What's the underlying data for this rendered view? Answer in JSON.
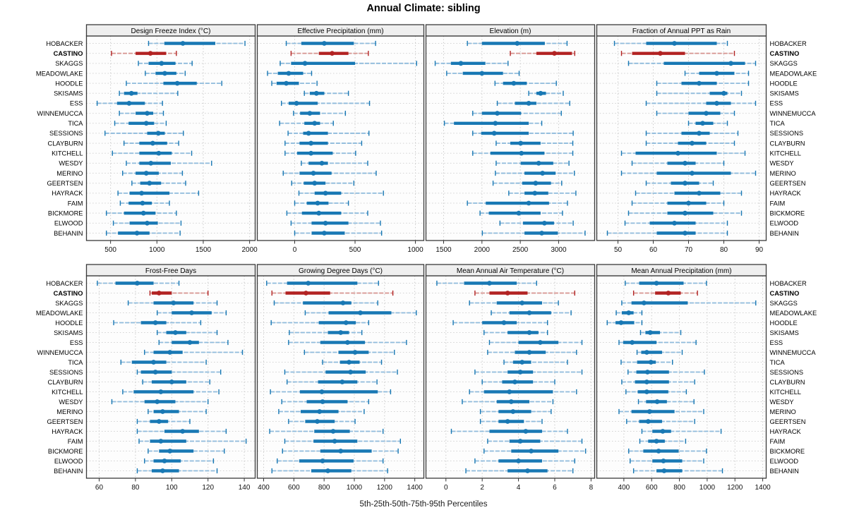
{
  "title": "Annual Climate: sibling",
  "footer_label": "5th-25th-50th-75th-95th Percentiles",
  "percentiles": [
    5,
    25,
    50,
    75,
    95
  ],
  "stations": [
    "HOBACKER",
    "CASTINO",
    "SKAGGS",
    "MEADOWLAKE",
    "HOODLE",
    "SKISAMS",
    "ESS",
    "WINNEMUCCA",
    "TICA",
    "SESSIONS",
    "CLAYBURN",
    "KITCHELL",
    "WESDY",
    "MERINO",
    "GEERTSEN",
    "HAYRACK",
    "FAIM",
    "BICKMORE",
    "ELWOOD",
    "BEHANIN"
  ],
  "highlight_station": "CASTINO",
  "colors": {
    "series": "#1878B4",
    "series_whisker": "#8FBBDC",
    "highlight": "#B22222",
    "highlight_whisker": "#D6938E",
    "strip_bg": "#EFEFEF",
    "border": "#3A3A3A",
    "grid": "#CBCBCB",
    "text": "#111111"
  },
  "chart_data": [
    {
      "type": "scatter",
      "mark": "percentile-interval",
      "title": "Design Freeze Index (°C)",
      "row": 0,
      "col": 0,
      "xlim": [
        240,
        2060
      ],
      "ticks": [
        500,
        1000,
        1500,
        2000
      ],
      "values": [
        [
          910,
          1080,
          1280,
          1630,
          1950
        ],
        [
          510,
          770,
          930,
          1100,
          1210
        ],
        [
          800,
          910,
          1050,
          1200,
          1380
        ],
        [
          875,
          985,
          1085,
          1210,
          1305
        ],
        [
          670,
          1070,
          1220,
          1430,
          1700
        ],
        [
          595,
          645,
          725,
          790,
          1225
        ],
        [
          355,
          570,
          700,
          870,
          1060
        ],
        [
          595,
          770,
          895,
          960,
          1070
        ],
        [
          545,
          695,
          885,
          970,
          1100
        ],
        [
          440,
          895,
          1015,
          1085,
          1285
        ],
        [
          645,
          810,
          955,
          1110,
          1235
        ],
        [
          520,
          810,
          1020,
          1160,
          1375
        ],
        [
          670,
          810,
          935,
          1150,
          1590
        ],
        [
          630,
          770,
          885,
          1020,
          1275
        ],
        [
          730,
          820,
          920,
          1045,
          1310
        ],
        [
          580,
          705,
          835,
          1135,
          1450
        ],
        [
          605,
          695,
          845,
          945,
          1135
        ],
        [
          455,
          645,
          855,
          985,
          1210
        ],
        [
          530,
          705,
          895,
          1010,
          1260
        ],
        [
          455,
          580,
          785,
          920,
          1250
        ]
      ]
    },
    {
      "type": "scatter",
      "mark": "percentile-interval",
      "title": "Effective Precipitation (mm)",
      "row": 0,
      "col": 1,
      "xlim": [
        -310,
        1070
      ],
      "ticks": [
        0,
        500,
        1000
      ],
      "values": [
        [
          -70,
          55,
          245,
          490,
          670
        ],
        [
          -30,
          200,
          310,
          445,
          610
        ],
        [
          -120,
          -30,
          85,
          500,
          1010
        ],
        [
          -225,
          -140,
          -50,
          70,
          140
        ],
        [
          -190,
          -150,
          -70,
          35,
          185
        ],
        [
          80,
          125,
          180,
          245,
          445
        ],
        [
          -110,
          -50,
          15,
          190,
          620
        ],
        [
          -10,
          45,
          125,
          210,
          420
        ],
        [
          -125,
          80,
          165,
          210,
          320
        ],
        [
          -55,
          70,
          115,
          275,
          615
        ],
        [
          -80,
          40,
          135,
          275,
          555
        ],
        [
          -80,
          20,
          135,
          315,
          505
        ],
        [
          55,
          115,
          225,
          275,
          605
        ],
        [
          -95,
          40,
          155,
          305,
          675
        ],
        [
          -25,
          75,
          165,
          255,
          490
        ],
        [
          35,
          165,
          255,
          385,
          735
        ],
        [
          0,
          100,
          190,
          280,
          445
        ],
        [
          -65,
          60,
          200,
          385,
          605
        ],
        [
          -30,
          140,
          255,
          445,
          710
        ],
        [
          0,
          140,
          245,
          415,
          720
        ]
      ]
    },
    {
      "type": "scatter",
      "mark": "percentile-interval",
      "title": "Elevation (m)",
      "row": 0,
      "col": 2,
      "xlim": [
        1270,
        3470
      ],
      "ticks": [
        1500,
        2000,
        2500,
        3000
      ],
      "values": [
        [
          1810,
          2000,
          2460,
          2820,
          3110
        ],
        [
          2370,
          2710,
          2945,
          3175,
          3210
        ],
        [
          1390,
          1595,
          1725,
          2045,
          2340
        ],
        [
          1540,
          1750,
          2000,
          2275,
          2485
        ],
        [
          2170,
          2275,
          2415,
          2585,
          2970
        ],
        [
          2610,
          2710,
          2765,
          2835,
          3060
        ],
        [
          2200,
          2430,
          2610,
          2710,
          3145
        ],
        [
          1880,
          2000,
          2200,
          2510,
          3035
        ],
        [
          1510,
          1635,
          2175,
          2610,
          2780
        ],
        [
          1880,
          1990,
          2160,
          2610,
          3190
        ],
        [
          2185,
          2370,
          2505,
          2765,
          3185
        ],
        [
          1880,
          2110,
          2515,
          2815,
          3185
        ],
        [
          2185,
          2505,
          2740,
          2930,
          3135
        ],
        [
          2175,
          2555,
          2790,
          2960,
          3205
        ],
        [
          2145,
          2525,
          2700,
          2900,
          3040
        ],
        [
          2350,
          2555,
          2690,
          2865,
          3225
        ],
        [
          1810,
          2050,
          2610,
          2875,
          3115
        ],
        [
          1975,
          2090,
          2480,
          2765,
          3050
        ],
        [
          2235,
          2535,
          2815,
          2940,
          3190
        ],
        [
          2005,
          2555,
          2780,
          2990,
          3345
        ]
      ]
    },
    {
      "type": "scatter",
      "mark": "percentile-interval",
      "title": "Fraction of Annual PPT as Rain",
      "row": 0,
      "col": 3,
      "xlim": [
        44,
        92
      ],
      "ticks": [
        50,
        60,
        70,
        80,
        90
      ],
      "values": [
        [
          49,
          58,
          66,
          78,
          81
        ],
        [
          51,
          54,
          62,
          69,
          83
        ],
        [
          53,
          63,
          82,
          86,
          89
        ],
        [
          69,
          73,
          78,
          83,
          87
        ],
        [
          61,
          68,
          73,
          78,
          87
        ],
        [
          61,
          76,
          80,
          81,
          85
        ],
        [
          58,
          75,
          78,
          82,
          89
        ],
        [
          61,
          70,
          75,
          79,
          83
        ],
        [
          70,
          72,
          74,
          77,
          81
        ],
        [
          58,
          68,
          73,
          76,
          84
        ],
        [
          58,
          67,
          71,
          75,
          83
        ],
        [
          51,
          55,
          67,
          78,
          86
        ],
        [
          54,
          64,
          69,
          72,
          80
        ],
        [
          51,
          61,
          71,
          82,
          89
        ],
        [
          58,
          65,
          69,
          73,
          77
        ],
        [
          55,
          66,
          73,
          79,
          85
        ],
        [
          54,
          64,
          70,
          75,
          80
        ],
        [
          53,
          64,
          69,
          77,
          85
        ],
        [
          52,
          59,
          66,
          72,
          81
        ],
        [
          47,
          61,
          69,
          72,
          81
        ]
      ]
    },
    {
      "type": "scatter",
      "mark": "percentile-interval",
      "title": "Frost-Free Days",
      "row": 1,
      "col": 0,
      "xlim": [
        53,
        146
      ],
      "ticks": [
        60,
        80,
        100,
        120,
        140
      ],
      "values": [
        [
          59,
          69,
          81,
          90,
          104
        ],
        [
          88,
          89,
          93,
          100,
          120
        ],
        [
          76,
          90,
          101,
          112,
          125
        ],
        [
          92,
          100,
          111,
          122,
          130
        ],
        [
          68,
          83,
          91,
          97,
          116
        ],
        [
          92,
          97,
          102,
          108,
          125
        ],
        [
          93,
          100,
          110,
          115,
          131
        ],
        [
          85,
          90,
          99,
          106,
          139
        ],
        [
          72,
          78,
          90,
          97,
          119
        ],
        [
          81,
          83,
          91,
          100,
          127
        ],
        [
          84,
          89,
          100,
          108,
          121
        ],
        [
          73,
          79,
          94,
          112,
          126
        ],
        [
          67,
          85,
          92,
          102,
          120
        ],
        [
          87,
          90,
          95,
          104,
          119
        ],
        [
          81,
          88,
          93,
          98,
          110
        ],
        [
          81,
          96,
          106,
          115,
          130
        ],
        [
          82,
          88,
          94,
          108,
          141
        ],
        [
          87,
          93,
          99,
          112,
          129
        ],
        [
          85,
          90,
          96,
          105,
          123
        ],
        [
          81,
          89,
          95,
          104,
          125
        ]
      ]
    },
    {
      "type": "scatter",
      "mark": "percentile-interval",
      "title": "Growing Degree Days (°C)",
      "row": 1,
      "col": 1,
      "xlim": [
        358,
        1460
      ],
      "ticks": [
        400,
        600,
        800,
        1000,
        1200,
        1400
      ],
      "values": [
        [
          420,
          555,
          695,
          1020,
          1160
        ],
        [
          455,
          545,
          680,
          840,
          1255
        ],
        [
          470,
          660,
          925,
          980,
          1155
        ],
        [
          675,
          830,
          1040,
          1245,
          1410
        ],
        [
          450,
          765,
          945,
          1010,
          1095
        ],
        [
          570,
          825,
          910,
          965,
          1050
        ],
        [
          565,
          775,
          955,
          1070,
          1345
        ],
        [
          670,
          895,
          1005,
          1095,
          1265
        ],
        [
          790,
          905,
          965,
          1035,
          1180
        ],
        [
          540,
          810,
          975,
          1075,
          1285
        ],
        [
          555,
          760,
          920,
          1020,
          1150
        ],
        [
          445,
          640,
          785,
          1155,
          1240
        ],
        [
          520,
          685,
          790,
          955,
          1095
        ],
        [
          500,
          645,
          770,
          895,
          1065
        ],
        [
          565,
          675,
          755,
          870,
          1005
        ],
        [
          440,
          735,
          860,
          970,
          1190
        ],
        [
          540,
          730,
          870,
          1020,
          1305
        ],
        [
          525,
          775,
          910,
          1115,
          1290
        ],
        [
          490,
          635,
          790,
          995,
          1190
        ],
        [
          455,
          715,
          825,
          980,
          1220
        ]
      ]
    },
    {
      "type": "scatter",
      "mark": "percentile-interval",
      "title": "Mean Annual Air Temperature (°C)",
      "row": 1,
      "col": 2,
      "xlim": [
        -1.1,
        8.2
      ],
      "ticks": [
        0,
        2,
        4,
        6,
        8
      ],
      "values": [
        [
          -0.5,
          1.0,
          2.4,
          3.9,
          5.0
        ],
        [
          1.6,
          2.4,
          3.4,
          4.5,
          7.1
        ],
        [
          1.3,
          2.8,
          4.2,
          5.3,
          6.2
        ],
        [
          2.5,
          3.5,
          4.6,
          5.8,
          6.9
        ],
        [
          0.4,
          2.0,
          3.2,
          3.9,
          5.6
        ],
        [
          2.1,
          3.4,
          4.6,
          5.1,
          5.6
        ],
        [
          2.4,
          4.0,
          5.2,
          6.2,
          7.5
        ],
        [
          2.3,
          3.8,
          4.6,
          5.5,
          7.2
        ],
        [
          3.2,
          3.7,
          4.2,
          4.7,
          6.7
        ],
        [
          1.6,
          3.4,
          4.1,
          4.8,
          7.5
        ],
        [
          2.0,
          3.1,
          3.8,
          4.8,
          6.0
        ],
        [
          1.3,
          2.1,
          3.5,
          5.9,
          7.2
        ],
        [
          0.9,
          2.8,
          3.6,
          4.6,
          5.9
        ],
        [
          1.9,
          2.9,
          3.7,
          4.7,
          5.8
        ],
        [
          1.9,
          2.9,
          3.4,
          4.3,
          5.3
        ],
        [
          0.3,
          2.4,
          4.4,
          5.3,
          6.7
        ],
        [
          2.3,
          3.5,
          4.1,
          5.2,
          7.5
        ],
        [
          2.1,
          3.6,
          4.7,
          6.2,
          7.7
        ],
        [
          1.6,
          2.9,
          4.0,
          5.3,
          7.1
        ],
        [
          1.1,
          3.4,
          4.5,
          5.6,
          7.0
        ]
      ]
    },
    {
      "type": "scatter",
      "mark": "percentile-interval",
      "title": "Mean Annual Precipitation (mm)",
      "row": 1,
      "col": 3,
      "xlim": [
        205,
        1425
      ],
      "ticks": [
        400,
        600,
        800,
        1000,
        1200,
        1400
      ],
      "values": [
        [
          410,
          510,
          635,
          830,
          995
        ],
        [
          470,
          625,
          720,
          810,
          930
        ],
        [
          385,
          455,
          545,
          860,
          1350
        ],
        [
          345,
          385,
          435,
          470,
          530
        ],
        [
          280,
          340,
          380,
          475,
          530
        ],
        [
          520,
          555,
          590,
          660,
          810
        ],
        [
          365,
          395,
          460,
          635,
          920
        ],
        [
          495,
          525,
          565,
          675,
          820
        ],
        [
          380,
          495,
          595,
          630,
          750
        ],
        [
          430,
          490,
          570,
          725,
          980
        ],
        [
          385,
          480,
          565,
          725,
          910
        ],
        [
          415,
          500,
          565,
          720,
          850
        ],
        [
          505,
          560,
          640,
          710,
          905
        ],
        [
          365,
          455,
          585,
          765,
          975
        ],
        [
          420,
          510,
          575,
          675,
          910
        ],
        [
          530,
          605,
          680,
          740,
          1100
        ],
        [
          515,
          575,
          635,
          695,
          845
        ],
        [
          435,
          540,
          650,
          795,
          995
        ],
        [
          445,
          605,
          685,
          820,
          975
        ],
        [
          470,
          635,
          690,
          820,
          1110
        ]
      ]
    }
  ]
}
